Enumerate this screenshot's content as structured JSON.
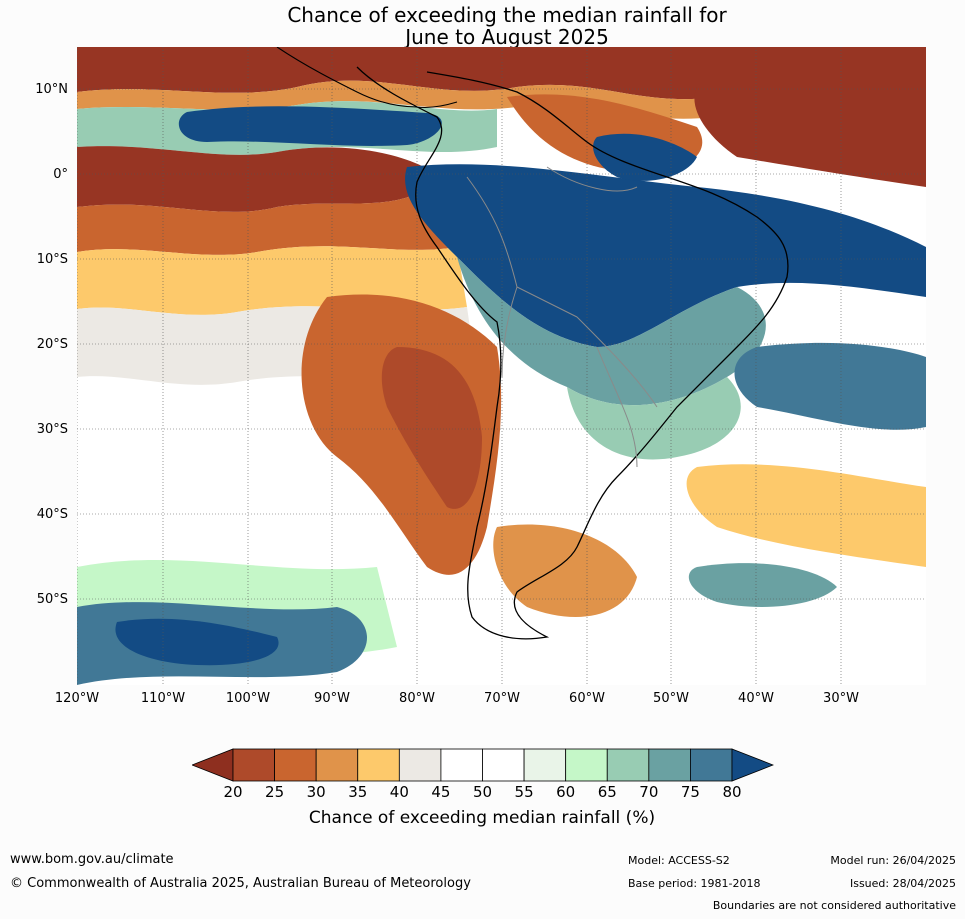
{
  "title": {
    "line1": "Chance of exceeding the median rainfall for",
    "line2": "June to August 2025"
  },
  "map": {
    "lat_labels": [
      "10°N",
      "0°",
      "10°S",
      "20°S",
      "30°S",
      "40°S",
      "50°S"
    ],
    "lon_labels": [
      "120°W",
      "110°W",
      "100°W",
      "90°W",
      "80°W",
      "70°W",
      "60°W",
      "50°W",
      "40°W",
      "30°W"
    ],
    "region": "South America and surrounding oceans"
  },
  "legend": {
    "ticks": [
      "20",
      "25",
      "30",
      "35",
      "40",
      "45",
      "50",
      "55",
      "60",
      "65",
      "70",
      "75",
      "80"
    ],
    "colors": [
      "#973523",
      "#ae4a2a",
      "#c9652f",
      "#e0934a",
      "#fdc96b",
      "#ece9e4",
      "#ffffff",
      "#ffffff",
      "#e9f4e8",
      "#c5f7c8",
      "#98ccb3",
      "#6aa1a2",
      "#417896"
    ],
    "low_extend_color": "#8e2f1f",
    "high_extend_color": "#134b84",
    "label": "Chance of exceeding median rainfall (%)"
  },
  "footer": {
    "website": "www.bom.gov.au/climate",
    "copyright": "© Commonwealth of Australia 2025, Australian Bureau of Meteorology",
    "model": "Model: ACCESS-S2",
    "base_period": "Base period: 1981-2018",
    "model_run": "Model run: 26/04/2025",
    "issued": "Issued: 28/04/2025",
    "disclaimer": "Boundaries are not considered authoritative"
  }
}
